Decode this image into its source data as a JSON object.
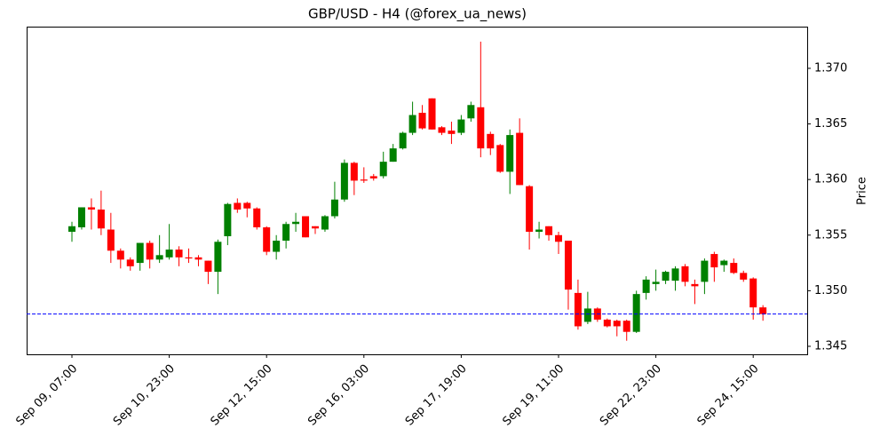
{
  "chart_data": {
    "type": "candlestick",
    "title": "GBP/USD - H4 (@forex_ua_news)",
    "y_label": "Price",
    "categories": [
      "Sep 09, 07:00",
      null,
      null,
      null,
      null,
      null,
      null,
      null,
      null,
      null,
      "Sep 10, 23:00",
      null,
      null,
      null,
      null,
      null,
      null,
      null,
      null,
      null,
      "Sep 12, 15:00",
      null,
      null,
      null,
      null,
      null,
      null,
      null,
      null,
      null,
      "Sep 16, 03:00",
      null,
      null,
      null,
      null,
      null,
      null,
      null,
      null,
      null,
      "Sep 17, 19:00",
      null,
      null,
      null,
      null,
      null,
      null,
      null,
      null,
      null,
      "Sep 19, 11:00",
      null,
      null,
      null,
      null,
      null,
      null,
      null,
      null,
      null,
      "Sep 22, 23:00",
      null,
      null,
      null,
      null,
      null,
      null,
      null,
      null,
      null,
      "Sep 24, 15:00",
      null
    ],
    "open": [
      1.3553,
      1.3557,
      1.3575,
      1.3573,
      1.3555,
      1.3536,
      1.3528,
      1.3525,
      1.3543,
      1.3528,
      1.353,
      1.3537,
      1.353,
      1.353,
      1.3527,
      1.3517,
      1.3549,
      1.3579,
      1.3579,
      1.3574,
      1.3557,
      1.3535,
      1.3545,
      1.356,
      1.3567,
      1.3558,
      1.3555,
      1.3567,
      1.3582,
      1.3615,
      1.36,
      1.3603,
      1.3603,
      1.3616,
      1.3628,
      1.3642,
      1.366,
      1.3673,
      1.3647,
      1.3644,
      1.3642,
      1.3655,
      1.3665,
      1.3641,
      1.3631,
      1.3607,
      1.3642,
      1.3594,
      1.3553,
      1.3558,
      1.355,
      1.3545,
      1.3498,
      1.3472,
      1.3484,
      1.3474,
      1.3473,
      1.3473,
      1.3463,
      1.3498,
      1.3506,
      1.3509,
      1.3509,
      1.3522,
      1.3506,
      1.3508,
      1.3533,
      1.3523,
      1.3525,
      1.3516,
      1.3511,
      1.3485
    ],
    "high": [
      1.3562,
      1.3575,
      1.3583,
      1.359,
      1.357,
      1.3538,
      1.353,
      1.3543,
      1.3545,
      1.355,
      1.356,
      1.354,
      1.3538,
      1.3532,
      1.3527,
      1.3546,
      1.3579,
      1.3583,
      1.358,
      1.3575,
      1.3558,
      1.355,
      1.3562,
      1.357,
      1.3567,
      1.3558,
      1.3568,
      1.3598,
      1.3618,
      1.3616,
      1.3611,
      1.3605,
      1.3625,
      1.3632,
      1.3643,
      1.367,
      1.3667,
      1.3673,
      1.3648,
      1.3652,
      1.3658,
      1.367,
      1.3724,
      1.3643,
      1.3632,
      1.3645,
      1.3655,
      1.3595,
      1.3562,
      1.3558,
      1.3553,
      1.3545,
      1.351,
      1.3499,
      1.3485,
      1.3475,
      1.3474,
      1.3474,
      1.35,
      1.3513,
      1.3519,
      1.3518,
      1.3522,
      1.3524,
      1.351,
      1.3529,
      1.3535,
      1.3528,
      1.3529,
      1.3518,
      1.3512,
      1.3487
    ],
    "low": [
      1.3544,
      1.3555,
      1.3555,
      1.355,
      1.3525,
      1.352,
      1.3518,
      1.3518,
      1.352,
      1.3525,
      1.3528,
      1.3522,
      1.3525,
      1.3522,
      1.3506,
      1.3497,
      1.3541,
      1.357,
      1.3566,
      1.3555,
      1.3532,
      1.3528,
      1.3538,
      1.3553,
      1.3548,
      1.3551,
      1.3553,
      1.3565,
      1.358,
      1.3586,
      1.3597,
      1.3599,
      1.3601,
      1.3616,
      1.3627,
      1.364,
      1.3645,
      1.3645,
      1.364,
      1.3632,
      1.364,
      1.3652,
      1.362,
      1.3622,
      1.3606,
      1.3587,
      1.3595,
      1.3537,
      1.3547,
      1.3545,
      1.3533,
      1.3483,
      1.3465,
      1.347,
      1.3472,
      1.3467,
      1.3459,
      1.3455,
      1.3462,
      1.3492,
      1.35,
      1.3506,
      1.35,
      1.3504,
      1.3488,
      1.3497,
      1.3508,
      1.3517,
      1.3515,
      1.3508,
      1.3474,
      1.3473
    ],
    "close": [
      1.3558,
      1.3575,
      1.3573,
      1.3556,
      1.3536,
      1.3528,
      1.3522,
      1.3543,
      1.3528,
      1.3532,
      1.3537,
      1.353,
      1.3529,
      1.3528,
      1.3517,
      1.3544,
      1.3578,
      1.3573,
      1.3574,
      1.3557,
      1.3535,
      1.3545,
      1.356,
      1.3562,
      1.3548,
      1.3556,
      1.3567,
      1.3582,
      1.3615,
      1.3599,
      1.3599,
      1.3601,
      1.3616,
      1.3628,
      1.3642,
      1.3658,
      1.3646,
      1.3645,
      1.3642,
      1.3641,
      1.3654,
      1.3667,
      1.3628,
      1.3628,
      1.3607,
      1.364,
      1.3595,
      1.3553,
      1.3555,
      1.355,
      1.3544,
      1.3501,
      1.3468,
      1.3484,
      1.3474,
      1.3468,
      1.3468,
      1.3463,
      1.3497,
      1.351,
      1.3508,
      1.3517,
      1.352,
      1.3508,
      1.3504,
      1.3527,
      1.3521,
      1.3527,
      1.3516,
      1.351,
      1.3485,
      1.3479
    ],
    "up_color": "green",
    "down_color": "red",
    "last_price_line": {
      "value": 1.3479,
      "color": "blue"
    },
    "ylim": [
      1.34428,
      1.37375
    ],
    "yticks": [
      1.345,
      {
        "value": 1.35,
        "label": "1.350"
      },
      1.355,
      {
        "value": 1.36,
        "label": "1.360"
      },
      1.365,
      {
        "value": 1.37,
        "label": "1.370"
      }
    ]
  }
}
